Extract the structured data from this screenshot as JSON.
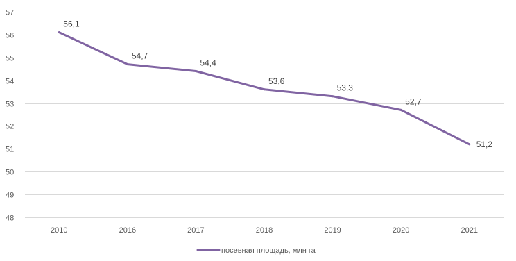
{
  "chart_data": {
    "type": "line",
    "x": [
      "2010",
      "2016",
      "2017",
      "2018",
      "2019",
      "2020",
      "2021"
    ],
    "series": [
      {
        "name": "посевная площадь, млн га",
        "values": [
          56.1,
          54.7,
          54.4,
          53.6,
          53.3,
          52.7,
          51.2
        ],
        "labels": [
          "56,1",
          "54,7",
          "54,4",
          "53,6",
          "53,3",
          "52,7",
          "51,2"
        ],
        "color": "#8064a2"
      }
    ],
    "ylim": [
      48,
      57
    ],
    "yticks": [
      48,
      49,
      50,
      51,
      52,
      53,
      54,
      55,
      56,
      57
    ],
    "title": "",
    "xlabel": "",
    "ylabel": "",
    "grid": true,
    "legend": "bottom-center",
    "colors": {
      "gridline": "#d9d9d9",
      "axis_text": "#595959",
      "label_text": "#404040"
    }
  }
}
